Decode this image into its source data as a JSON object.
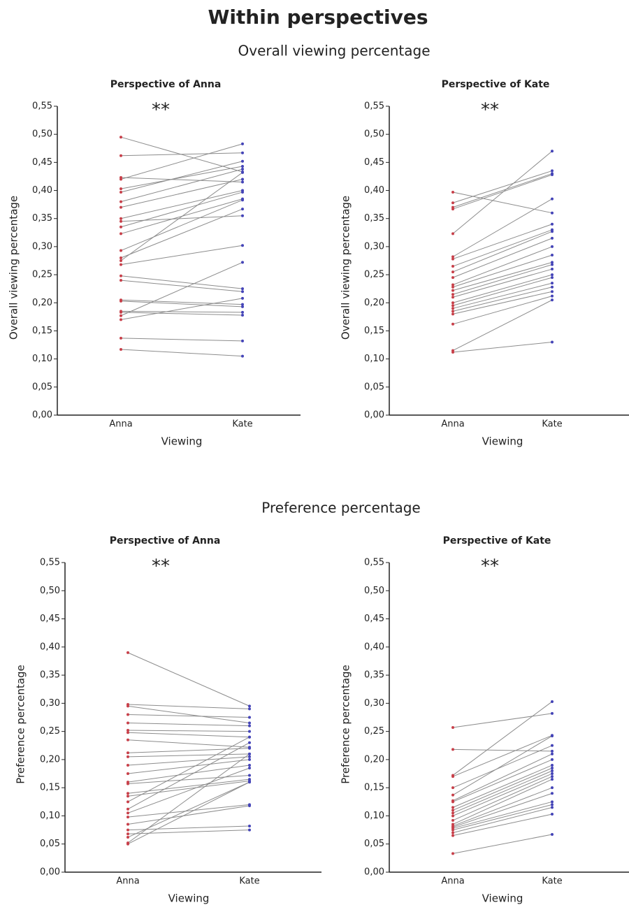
{
  "title": "Within perspectives",
  "sections": [
    "Overall viewing percentage",
    "Preference percentage"
  ],
  "chart_data": [
    {
      "type": "line",
      "title": "Perspective of Anna",
      "annotation": "**",
      "xlabel": "Viewing",
      "ylabel": "Overall viewing percentage",
      "categories": [
        "Anna",
        "Kate"
      ],
      "ylim": [
        0,
        0.55
      ],
      "yticks": [
        {
          "value": 0,
          "label": "0,00"
        },
        {
          "value": 0.05,
          "label": "0,05"
        },
        {
          "value": 0.1,
          "label": "0,10"
        },
        {
          "value": 0.15,
          "label": "0,15"
        },
        {
          "value": 0.2,
          "label": "0,20"
        },
        {
          "value": 0.25,
          "label": "0,25"
        },
        {
          "value": 0.3,
          "label": "0,30"
        },
        {
          "value": 0.35,
          "label": "0,35"
        },
        {
          "value": 0.4,
          "label": "0,40"
        },
        {
          "value": 0.45,
          "label": "0,45"
        },
        {
          "value": 0.5,
          "label": "0,50"
        },
        {
          "value": 0.55,
          "label": "0,55"
        }
      ],
      "line_color": "#8c8c8c",
      "marker_colors": [
        "#c8404a",
        "#4444b8"
      ],
      "series": [
        {
          "values": [
            0.495,
            0.433
          ]
        },
        {
          "values": [
            0.462,
            0.467
          ]
        },
        {
          "values": [
            0.423,
            0.415
          ]
        },
        {
          "values": [
            0.42,
            0.483
          ]
        },
        {
          "values": [
            0.403,
            0.443
          ]
        },
        {
          "values": [
            0.397,
            0.452
          ]
        },
        {
          "values": [
            0.38,
            0.438
          ]
        },
        {
          "values": [
            0.37,
            0.42
          ]
        },
        {
          "values": [
            0.35,
            0.4
          ]
        },
        {
          "values": [
            0.345,
            0.355
          ]
        },
        {
          "values": [
            0.335,
            0.397
          ]
        },
        {
          "values": [
            0.323,
            0.385
          ]
        },
        {
          "values": [
            0.293,
            0.383
          ]
        },
        {
          "values": [
            0.28,
            0.367
          ]
        },
        {
          "values": [
            0.275,
            0.432
          ]
        },
        {
          "values": [
            0.268,
            0.302
          ]
        },
        {
          "values": [
            0.248,
            0.225
          ]
        },
        {
          "values": [
            0.24,
            0.22
          ]
        },
        {
          "values": [
            0.205,
            0.197
          ]
        },
        {
          "values": [
            0.203,
            0.193
          ]
        },
        {
          "values": [
            0.185,
            0.183
          ]
        },
        {
          "values": [
            0.183,
            0.178
          ]
        },
        {
          "values": [
            0.177,
            0.272
          ]
        },
        {
          "values": [
            0.17,
            0.208
          ]
        },
        {
          "values": [
            0.137,
            0.132
          ]
        },
        {
          "values": [
            0.117,
            0.105
          ]
        }
      ]
    },
    {
      "type": "line",
      "title": "Perspective of Kate",
      "annotation": "**",
      "xlabel": "Viewing",
      "ylabel": "Overall viewing percentage",
      "categories": [
        "Anna",
        "Kate"
      ],
      "ylim": [
        0,
        0.55
      ],
      "yticks": [
        {
          "value": 0,
          "label": "0,00"
        },
        {
          "value": 0.05,
          "label": "0,05"
        },
        {
          "value": 0.1,
          "label": "0,10"
        },
        {
          "value": 0.15,
          "label": "0,15"
        },
        {
          "value": 0.2,
          "label": "0,20"
        },
        {
          "value": 0.25,
          "label": "0,25"
        },
        {
          "value": 0.3,
          "label": "0,30"
        },
        {
          "value": 0.35,
          "label": "0,35"
        },
        {
          "value": 0.4,
          "label": "0,40"
        },
        {
          "value": 0.45,
          "label": "0,45"
        },
        {
          "value": 0.5,
          "label": "0,50"
        },
        {
          "value": 0.55,
          "label": "0,55"
        }
      ],
      "line_color": "#8c8c8c",
      "marker_colors": [
        "#c8404a",
        "#4444b8"
      ],
      "series": [
        {
          "values": [
            0.397,
            0.36
          ]
        },
        {
          "values": [
            0.378,
            0.435
          ]
        },
        {
          "values": [
            0.37,
            0.43
          ]
        },
        {
          "values": [
            0.367,
            0.428
          ]
        },
        {
          "values": [
            0.323,
            0.47
          ]
        },
        {
          "values": [
            0.282,
            0.385
          ]
        },
        {
          "values": [
            0.278,
            0.34
          ]
        },
        {
          "values": [
            0.265,
            0.33
          ]
        },
        {
          "values": [
            0.255,
            0.327
          ]
        },
        {
          "values": [
            0.245,
            0.315
          ]
        },
        {
          "values": [
            0.232,
            0.3
          ]
        },
        {
          "values": [
            0.228,
            0.285
          ]
        },
        {
          "values": [
            0.222,
            0.272
          ]
        },
        {
          "values": [
            0.215,
            0.268
          ]
        },
        {
          "values": [
            0.21,
            0.26
          ]
        },
        {
          "values": [
            0.2,
            0.25
          ]
        },
        {
          "values": [
            0.195,
            0.245
          ]
        },
        {
          "values": [
            0.19,
            0.235
          ]
        },
        {
          "values": [
            0.185,
            0.228
          ]
        },
        {
          "values": [
            0.18,
            0.22
          ]
        },
        {
          "values": [
            0.162,
            0.212
          ]
        },
        {
          "values": [
            0.115,
            0.205
          ]
        },
        {
          "values": [
            0.112,
            0.13
          ]
        }
      ]
    },
    {
      "type": "line",
      "title": "Perspective of Anna",
      "annotation": "**",
      "xlabel": "Viewing",
      "ylabel": "Preference percentage",
      "categories": [
        "Anna",
        "Kate"
      ],
      "ylim": [
        0,
        0.55
      ],
      "yticks": [
        {
          "value": 0,
          "label": "0,00"
        },
        {
          "value": 0.05,
          "label": "0,05"
        },
        {
          "value": 0.1,
          "label": "0,10"
        },
        {
          "value": 0.15,
          "label": "0,15"
        },
        {
          "value": 0.2,
          "label": "0,20"
        },
        {
          "value": 0.25,
          "label": "0,25"
        },
        {
          "value": 0.3,
          "label": "0,30"
        },
        {
          "value": 0.35,
          "label": "0,35"
        },
        {
          "value": 0.4,
          "label": "0,40"
        },
        {
          "value": 0.45,
          "label": "0,45"
        },
        {
          "value": 0.5,
          "label": "0,50"
        },
        {
          "value": 0.55,
          "label": "0,55"
        }
      ],
      "line_color": "#8c8c8c",
      "marker_colors": [
        "#c8404a",
        "#4444b8"
      ],
      "series": [
        {
          "values": [
            0.39,
            0.295
          ]
        },
        {
          "values": [
            0.298,
            0.29
          ]
        },
        {
          "values": [
            0.295,
            0.265
          ]
        },
        {
          "values": [
            0.28,
            0.275
          ]
        },
        {
          "values": [
            0.265,
            0.26
          ]
        },
        {
          "values": [
            0.252,
            0.25
          ]
        },
        {
          "values": [
            0.248,
            0.24
          ]
        },
        {
          "values": [
            0.235,
            0.222
          ]
        },
        {
          "values": [
            0.212,
            0.22
          ]
        },
        {
          "values": [
            0.205,
            0.21
          ]
        },
        {
          "values": [
            0.19,
            0.205
          ]
        },
        {
          "values": [
            0.175,
            0.2
          ]
        },
        {
          "values": [
            0.16,
            0.19
          ]
        },
        {
          "values": [
            0.157,
            0.172
          ]
        },
        {
          "values": [
            0.14,
            0.165
          ]
        },
        {
          "values": [
            0.135,
            0.162
          ]
        },
        {
          "values": [
            0.125,
            0.24
          ]
        },
        {
          "values": [
            0.112,
            0.23
          ]
        },
        {
          "values": [
            0.105,
            0.185
          ]
        },
        {
          "values": [
            0.098,
            0.12
          ]
        },
        {
          "values": [
            0.085,
            0.118
          ]
        },
        {
          "values": [
            0.075,
            0.082
          ]
        },
        {
          "values": [
            0.068,
            0.075
          ]
        },
        {
          "values": [
            0.062,
            0.16
          ]
        },
        {
          "values": [
            0.052,
            0.21
          ]
        },
        {
          "values": [
            0.05,
            0.16
          ]
        }
      ]
    },
    {
      "type": "line",
      "title": "Perspective of Kate",
      "annotation": "**",
      "xlabel": "Viewing",
      "ylabel": "Preference percentage",
      "categories": [
        "Anna",
        "Kate"
      ],
      "ylim": [
        0,
        0.55
      ],
      "yticks": [
        {
          "value": 0,
          "label": "0,00"
        },
        {
          "value": 0.05,
          "label": "0,05"
        },
        {
          "value": 0.1,
          "label": "0,10"
        },
        {
          "value": 0.15,
          "label": "0,15"
        },
        {
          "value": 0.2,
          "label": "0,20"
        },
        {
          "value": 0.25,
          "label": "0,25"
        },
        {
          "value": 0.3,
          "label": "0,30"
        },
        {
          "value": 0.35,
          "label": "0,35"
        },
        {
          "value": 0.4,
          "label": "0,40"
        },
        {
          "value": 0.45,
          "label": "0,45"
        },
        {
          "value": 0.5,
          "label": "0,50"
        },
        {
          "value": 0.55,
          "label": "0,55"
        }
      ],
      "line_color": "#8c8c8c",
      "marker_colors": [
        "#c8404a",
        "#4444b8"
      ],
      "series": [
        {
          "values": [
            0.257,
            0.282
          ]
        },
        {
          "values": [
            0.218,
            0.215
          ]
        },
        {
          "values": [
            0.172,
            0.303
          ]
        },
        {
          "values": [
            0.17,
            0.243
          ]
        },
        {
          "values": [
            0.15,
            0.225
          ]
        },
        {
          "values": [
            0.137,
            0.242
          ]
        },
        {
          "values": [
            0.127,
            0.21
          ]
        },
        {
          "values": [
            0.125,
            0.2
          ]
        },
        {
          "values": [
            0.115,
            0.19
          ]
        },
        {
          "values": [
            0.11,
            0.185
          ]
        },
        {
          "values": [
            0.105,
            0.18
          ]
        },
        {
          "values": [
            0.1,
            0.175
          ]
        },
        {
          "values": [
            0.092,
            0.17
          ]
        },
        {
          "values": [
            0.085,
            0.165
          ]
        },
        {
          "values": [
            0.082,
            0.15
          ]
        },
        {
          "values": [
            0.08,
            0.14
          ]
        },
        {
          "values": [
            0.078,
            0.125
          ]
        },
        {
          "values": [
            0.075,
            0.12
          ]
        },
        {
          "values": [
            0.07,
            0.115
          ]
        },
        {
          "values": [
            0.065,
            0.103
          ]
        },
        {
          "values": [
            0.033,
            0.067
          ]
        }
      ]
    }
  ]
}
